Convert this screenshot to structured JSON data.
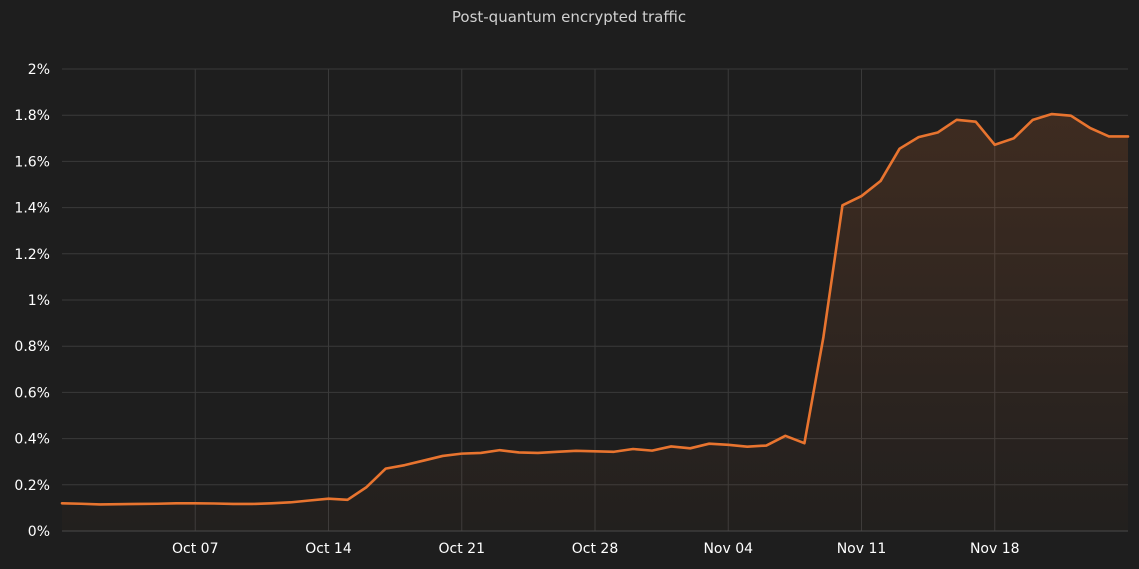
{
  "chart_data": {
    "type": "area",
    "title": "Post-quantum encrypted traffic",
    "xlabel": "",
    "ylabel": "",
    "ylim": [
      0,
      2
    ],
    "y_unit": "%",
    "yticks": [
      0,
      0.2,
      0.4,
      0.6,
      0.8,
      1,
      1.2,
      1.4,
      1.6,
      1.8,
      2
    ],
    "ytick_labels": [
      "0%",
      "0.2%",
      "0.4%",
      "0.6%",
      "0.8%",
      "1%",
      "1.2%",
      "1.4%",
      "1.6%",
      "1.8%",
      "2%"
    ],
    "x_start": "2023-09-30",
    "x_end": "2023-11-25",
    "xticks": [
      "2023-10-07",
      "2023-10-14",
      "2023-10-21",
      "2023-10-28",
      "2023-11-04",
      "2023-11-11",
      "2023-11-18"
    ],
    "xtick_labels": [
      "Oct 07",
      "Oct 14",
      "Oct 21",
      "Oct 28",
      "Nov 04",
      "Nov 11",
      "Nov 18"
    ],
    "grid": true,
    "legend": "none",
    "series": [
      {
        "color": "#e8742f",
        "x": [
          "2023-09-30",
          "2023-10-01",
          "2023-10-02",
          "2023-10-03",
          "2023-10-04",
          "2023-10-05",
          "2023-10-06",
          "2023-10-07",
          "2023-10-08",
          "2023-10-09",
          "2023-10-10",
          "2023-10-11",
          "2023-10-12",
          "2023-10-13",
          "2023-10-14",
          "2023-10-15",
          "2023-10-16",
          "2023-10-17",
          "2023-10-18",
          "2023-10-19",
          "2023-10-20",
          "2023-10-21",
          "2023-10-22",
          "2023-10-23",
          "2023-10-24",
          "2023-10-25",
          "2023-10-26",
          "2023-10-27",
          "2023-10-28",
          "2023-10-29",
          "2023-10-30",
          "2023-10-31",
          "2023-11-01",
          "2023-11-02",
          "2023-11-03",
          "2023-11-04",
          "2023-11-05",
          "2023-11-06",
          "2023-11-07",
          "2023-11-08",
          "2023-11-09",
          "2023-11-10",
          "2023-11-11",
          "2023-11-12",
          "2023-11-13",
          "2023-11-14",
          "2023-11-15",
          "2023-11-16",
          "2023-11-17",
          "2023-11-18",
          "2023-11-19",
          "2023-11-20",
          "2023-11-21",
          "2023-11-22",
          "2023-11-23",
          "2023-11-24",
          "2023-11-25"
        ],
        "values": [
          0.12,
          0.118,
          0.115,
          0.116,
          0.117,
          0.118,
          0.12,
          0.12,
          0.119,
          0.117,
          0.117,
          0.12,
          0.124,
          0.132,
          0.14,
          0.135,
          0.19,
          0.27,
          0.285,
          0.305,
          0.325,
          0.335,
          0.338,
          0.35,
          0.34,
          0.338,
          0.343,
          0.347,
          0.345,
          0.343,
          0.355,
          0.348,
          0.366,
          0.358,
          0.378,
          0.373,
          0.365,
          0.37,
          0.412,
          0.38,
          0.84,
          1.41,
          1.45,
          1.515,
          1.655,
          1.705,
          1.725,
          1.78,
          1.772,
          1.672,
          1.7,
          1.78,
          1.805,
          1.798,
          1.745,
          1.708,
          1.708
        ]
      }
    ]
  }
}
